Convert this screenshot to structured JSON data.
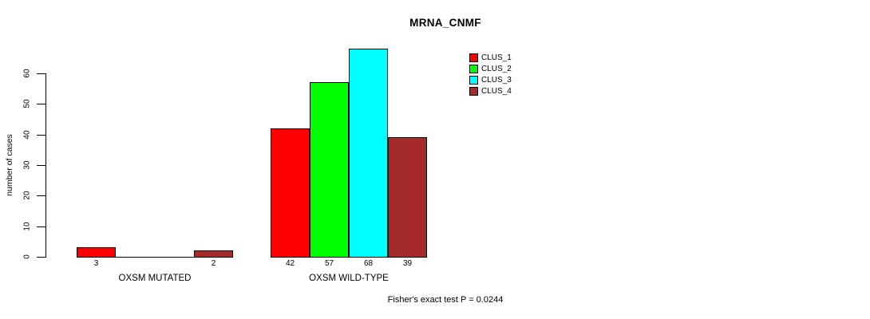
{
  "chart_data": {
    "type": "bar",
    "title": "MRNA_CNMF",
    "xlabel": "",
    "ylabel": "number of cases",
    "ylim": [
      0,
      60
    ],
    "yticks": [
      0,
      10,
      20,
      30,
      40,
      50,
      60
    ],
    "grid": false,
    "legend_position": "top-right",
    "categories": [
      "OXSM MUTATED",
      "OXSM WILD-TYPE"
    ],
    "series": [
      {
        "name": "CLUS_1",
        "color": "#FF0000",
        "values": [
          3,
          42
        ]
      },
      {
        "name": "CLUS_2",
        "color": "#00FF00",
        "values": [
          0,
          57
        ]
      },
      {
        "name": "CLUS_3",
        "color": "#00FFFF",
        "values": [
          0,
          68
        ]
      },
      {
        "name": "CLUS_4",
        "color": "#A52A2A",
        "values": [
          2,
          39
        ]
      }
    ],
    "bar_value_labels": {
      "OXSM MUTATED": [
        3,
        null,
        null,
        2
      ],
      "OXSM WILD-TYPE": [
        42,
        57,
        68,
        39
      ]
    },
    "annotation": "Fisher's exact test P = 0.0244"
  }
}
